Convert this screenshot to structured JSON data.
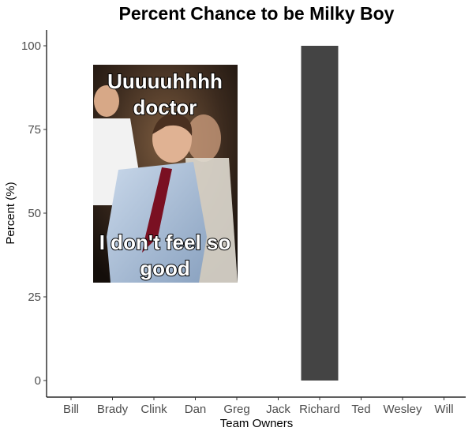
{
  "chart_data": {
    "type": "bar",
    "title": "Percent Chance to be Milky Boy",
    "xlabel": "Team Owners",
    "ylabel": "Percent (%)",
    "categories": [
      "Bill",
      "Brady",
      "Clink",
      "Dan",
      "Greg",
      "Jack",
      "Richard",
      "Ted",
      "Wesley",
      "Will"
    ],
    "values": [
      0,
      0,
      0,
      0,
      0,
      0,
      100,
      0,
      0,
      0
    ],
    "ylim": [
      0,
      100
    ],
    "yticks": [
      "0",
      "25",
      "50",
      "75",
      "100"
    ],
    "grid": false,
    "bar_color": "#444444",
    "annotation_image": {
      "description": "meme",
      "top_text": [
        "Uuuuuhhhh",
        "doctor"
      ],
      "bottom_text": [
        "I don't feel so",
        "good"
      ]
    }
  }
}
